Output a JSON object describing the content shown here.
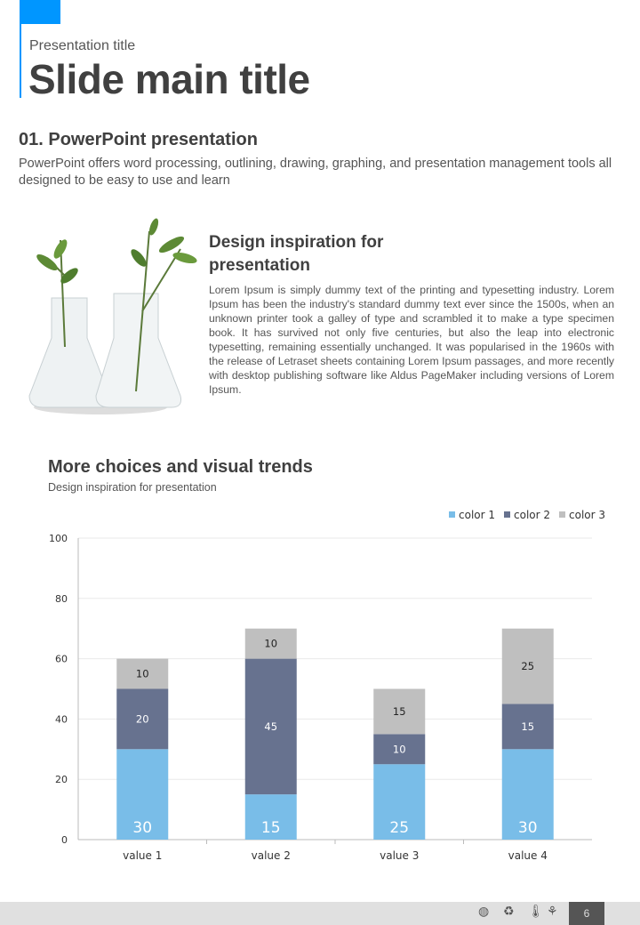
{
  "header": {
    "presentation_title": "Presentation title",
    "main_title": "Slide main title"
  },
  "section": {
    "title": "01. PowerPoint presentation",
    "body": "PowerPoint offers word processing, outlining, drawing, graphing, and presentation management tools all designed to be easy to use and learn"
  },
  "feature": {
    "title": "Design inspiration for presentation",
    "body": "Lorem Ipsum is simply dummy text of the printing and typesetting industry. Lorem Ipsum has been the industry's standard dummy text ever since the 1500s, when an unknown printer took a galley of type and scrambled it to make a type specimen book. It has survived not only five centuries, but also the leap into electronic typesetting, remaining essentially unchanged. It was popularised in the 1960s with the release of Letraset sheets containing Lorem Ipsum passages, and more recently with desktop publishing software like Aldus PageMaker including versions of Lorem Ipsum."
  },
  "chart_section": {
    "title": "More choices and visual trends",
    "subtitle": "Design inspiration for presentation"
  },
  "chart_data": {
    "type": "bar",
    "stacked": true,
    "categories": [
      "value 1",
      "value 2",
      "value 3",
      "value 4"
    ],
    "series": [
      {
        "name": "color 1",
        "color": "#79bde8",
        "values": [
          30,
          15,
          25,
          30
        ]
      },
      {
        "name": "color 2",
        "color": "#67728f",
        "values": [
          20,
          45,
          10,
          15
        ]
      },
      {
        "name": "color 3",
        "color": "#bfbfbf",
        "values": [
          10,
          10,
          15,
          25
        ]
      }
    ],
    "ylim": [
      0,
      100
    ],
    "yticks": [
      0,
      20,
      40,
      60,
      80,
      100
    ],
    "grid": true,
    "legend": "top-right"
  },
  "footer": {
    "page_number": "6",
    "icons": [
      "globe-icon",
      "recycle-icon",
      "thermometer-icon",
      "sprout-icon"
    ]
  }
}
